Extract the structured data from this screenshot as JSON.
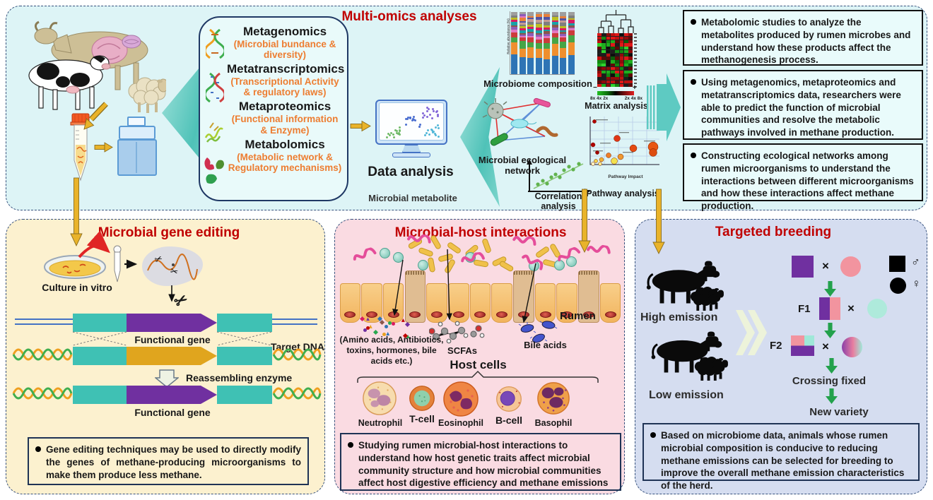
{
  "colors": {
    "top_bg": "#ddf4f6",
    "gene_bg": "#fcf1cf",
    "host_bg": "#fadbe2",
    "breed_bg": "#d5ddf0",
    "title_red": "#c00000",
    "accent_orange": "#ed7d31",
    "teal": "#3fc1b4",
    "purple": "#7030a0",
    "gold": "#e9b32a",
    "navy": "#1f3864"
  },
  "top": {
    "title": "Multi-omics analyses",
    "omics": [
      {
        "name": "Metagenomics",
        "desc": "(Microbial bundance & diversity)"
      },
      {
        "name": "Metatranscriptomics",
        "desc": "(Transcriptional Activity & regulatory laws)"
      },
      {
        "name": "Metaproteomics",
        "desc": "(Functional information & Enzyme)"
      },
      {
        "name": "Metabolomics",
        "desc": "(Metabolic network & Regulatory mechanisms)"
      }
    ],
    "data_analysis_label": "Data analysis",
    "microbial_metabolite_label": "Microbial metabolite",
    "chart_labels": {
      "microbiome": "Microbiome composition",
      "bars_ylabel": "Relative abundance (%)",
      "network": "Microbial ecological network",
      "correlation": "Correlation analysis",
      "matrix": "Matrix analysis",
      "matrix_minus": "−",
      "matrix_plus": "+",
      "matrix_scale_left": "8x 4x 2x",
      "matrix_scale_right": "2x 4x 8x",
      "pathway": "Pathway analysis",
      "pathway_xlabel": "Pathway Impact"
    },
    "bullets": [
      "Metabolomic studies to analyze the metabolites produced by rumen microbes and understand how these products affect the methanogenesis process.",
      "Using metagenomics, metaproteomics and metatranscriptomics data, researchers were able to predict the function of microbial communities and resolve the metabolic pathways involved in methane production.",
      "Constructing ecological networks among rumen microorganisms to understand the interactions between different microorganisms and how these interactions affect methane production."
    ]
  },
  "gene_editing": {
    "title": "Microbial gene editing",
    "culture_label": "Culture in vitro",
    "functional_gene_label_1": "Functional gene",
    "target_dna_label": "Target DNA",
    "reassembling_label": "Reassembling enzyme",
    "functional_gene_label_2": "Functional gene",
    "bullet": "Gene editing techniques may be used to directly modify the genes of methane-producing microorganisms to make them produce less methane."
  },
  "host_interactions": {
    "title": "Microbial-host interactions",
    "rumen_label": "Rumen",
    "amino_label": "(Amino acids, Antibiotics, toxins, hormones, bile acids etc.)",
    "scfa_label": "SCFAs",
    "bile_label": "Bile acids",
    "host_cells_label": "Host cells",
    "cells": [
      "Neutrophil",
      "T-cell",
      "Eosinophil",
      "B-cell",
      "Basophil"
    ],
    "bullet": "Studying rumen microbial-host interactions to understand how host genetic traits affect microbial community structure and how microbial communities affect host digestive efficiency and methane emissions"
  },
  "breeding": {
    "title": "Targeted breeding",
    "high_label": "High emission",
    "low_label": "Low emission",
    "f1": "F1",
    "f2": "F2",
    "cross": "×",
    "crossing_fixed": "Crossing fixed",
    "new_variety": "New variety",
    "male": "♂",
    "female": "♀",
    "bullet": "Based on microbiome data, animals whose rumen microbial composition is conducive to reducing methane emissions can be selected for breeding to improve the overall methane emission characteristics of the herd."
  }
}
